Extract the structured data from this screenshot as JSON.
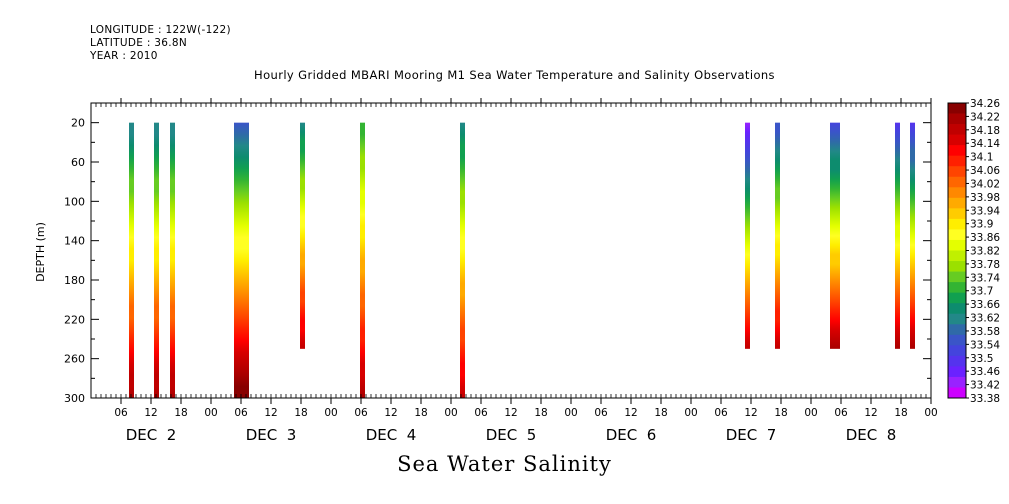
{
  "header": {
    "longitude": "LONGITUDE : 122W(-122)",
    "latitude": "LATITUDE : 36.8N",
    "year": "YEAR : 2010",
    "title": "Hourly Gridded MBARI Mooring M1 Sea Water Temperature and Salinity Observations"
  },
  "footer": {
    "title": "Sea Water Salinity"
  },
  "chart_data": {
    "type": "heatmap",
    "title": "Hourly Gridded MBARI Mooring M1 Sea Water Temperature and Salinity Observations",
    "variable": "Sea Water Salinity",
    "ylabel": "DEPTH (m)",
    "xlabel": "",
    "y_inverted": true,
    "ylim": [
      300,
      0
    ],
    "y_ticks": [
      20,
      60,
      100,
      140,
      180,
      220,
      260,
      300
    ],
    "x_range_hours": [
      0,
      168
    ],
    "x_tick_labels": [
      {
        "hour": 6,
        "label": "06"
      },
      {
        "hour": 12,
        "label": "12"
      },
      {
        "hour": 18,
        "label": "18"
      },
      {
        "hour": 24,
        "label": "00"
      },
      {
        "hour": 30,
        "label": "06"
      },
      {
        "hour": 36,
        "label": "12"
      },
      {
        "hour": 42,
        "label": "18"
      },
      {
        "hour": 48,
        "label": "00"
      },
      {
        "hour": 54,
        "label": "06"
      },
      {
        "hour": 60,
        "label": "12"
      },
      {
        "hour": 66,
        "label": "18"
      },
      {
        "hour": 72,
        "label": "00"
      },
      {
        "hour": 78,
        "label": "06"
      },
      {
        "hour": 84,
        "label": "12"
      },
      {
        "hour": 90,
        "label": "18"
      },
      {
        "hour": 96,
        "label": "00"
      },
      {
        "hour": 102,
        "label": "06"
      },
      {
        "hour": 108,
        "label": "12"
      },
      {
        "hour": 114,
        "label": "18"
      },
      {
        "hour": 120,
        "label": "00"
      },
      {
        "hour": 126,
        "label": "06"
      },
      {
        "hour": 132,
        "label": "12"
      },
      {
        "hour": 138,
        "label": "18"
      },
      {
        "hour": 144,
        "label": "00"
      },
      {
        "hour": 150,
        "label": "06"
      },
      {
        "hour": 156,
        "label": "12"
      },
      {
        "hour": 162,
        "label": "18"
      },
      {
        "hour": 168,
        "label": "00"
      }
    ],
    "day_labels": [
      {
        "hour": 12,
        "label": "DEC  2"
      },
      {
        "hour": 36,
        "label": "DEC  3"
      },
      {
        "hour": 60,
        "label": "DEC  4"
      },
      {
        "hour": 84,
        "label": "DEC  5"
      },
      {
        "hour": 108,
        "label": "DEC  6"
      },
      {
        "hour": 132,
        "label": "DEC  7"
      },
      {
        "hour": 156,
        "label": "DEC  8"
      }
    ],
    "colorbar": {
      "labels": [
        "34.26",
        "34.22",
        "34.18",
        "34.14",
        "34.1",
        "34.06",
        "34.02",
        "33.98",
        "33.94",
        "33.9",
        "33.86",
        "33.82",
        "33.78",
        "33.74",
        "33.7",
        "33.66",
        "33.62",
        "33.58",
        "33.54",
        "33.5",
        "33.46",
        "33.42",
        "33.38"
      ],
      "colors": [
        "#880000",
        "#a80000",
        "#c00000",
        "#d80000",
        "#ff0000",
        "#ff2000",
        "#ff4400",
        "#ff6600",
        "#ff8800",
        "#ffaa00",
        "#ffcc00",
        "#ffee00",
        "#ffff22",
        "#e4ff00",
        "#c0f000",
        "#9be000",
        "#66cc22",
        "#33b433",
        "#11a050",
        "#0d8c6e",
        "#228888",
        "#2f6aa8",
        "#3a55c8",
        "#4444dd",
        "#5533ee",
        "#6a22ff",
        "#9922ff",
        "#cc00ff"
      ]
    },
    "columns": [
      {
        "x_start_hour": 7.6,
        "x_end_hour": 8.6,
        "top_depth": 20,
        "bottom_depth": 300,
        "salinity_top": 33.6,
        "salinity_bottom": 34.22
      },
      {
        "x_start_hour": 12.6,
        "x_end_hour": 13.6,
        "top_depth": 20,
        "bottom_depth": 300,
        "salinity_top": 33.6,
        "salinity_bottom": 34.22
      },
      {
        "x_start_hour": 15.8,
        "x_end_hour": 16.8,
        "top_depth": 20,
        "bottom_depth": 300,
        "salinity_top": 33.6,
        "salinity_bottom": 34.22
      },
      {
        "x_start_hour": 28.6,
        "x_end_hour": 31.6,
        "top_depth": 20,
        "bottom_depth": 300,
        "salinity_top": 33.56,
        "salinity_bottom": 34.26
      },
      {
        "x_start_hour": 41.8,
        "x_end_hour": 42.8,
        "top_depth": 20,
        "bottom_depth": 250,
        "salinity_top": 33.62,
        "salinity_bottom": 34.18
      },
      {
        "x_start_hour": 53.8,
        "x_end_hour": 54.8,
        "top_depth": 20,
        "bottom_depth": 300,
        "salinity_top": 33.7,
        "salinity_bottom": 34.2
      },
      {
        "x_start_hour": 73.8,
        "x_end_hour": 74.8,
        "top_depth": 20,
        "bottom_depth": 300,
        "salinity_top": 33.62,
        "salinity_bottom": 34.18
      },
      {
        "x_start_hour": 130.8,
        "x_end_hour": 131.8,
        "top_depth": 20,
        "bottom_depth": 250,
        "salinity_top": 33.44,
        "salinity_bottom": 34.18
      },
      {
        "x_start_hour": 136.8,
        "x_end_hour": 137.8,
        "top_depth": 20,
        "bottom_depth": 250,
        "salinity_top": 33.54,
        "salinity_bottom": 34.18
      },
      {
        "x_start_hour": 147.8,
        "x_end_hour": 149.8,
        "top_depth": 20,
        "bottom_depth": 250,
        "salinity_top": 33.52,
        "salinity_bottom": 34.2
      },
      {
        "x_start_hour": 160.8,
        "x_end_hour": 161.8,
        "top_depth": 20,
        "bottom_depth": 250,
        "salinity_top": 33.5,
        "salinity_bottom": 34.2
      },
      {
        "x_start_hour": 163.8,
        "x_end_hour": 164.8,
        "top_depth": 20,
        "bottom_depth": 250,
        "salinity_top": 33.48,
        "salinity_bottom": 34.2
      }
    ]
  }
}
